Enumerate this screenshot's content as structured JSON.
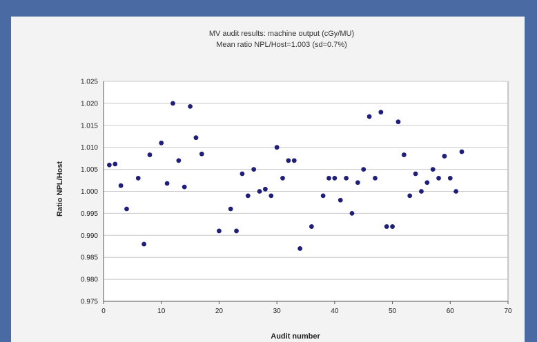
{
  "colors": {
    "frame": "#4a6aa3",
    "panel": "#f3f3f3",
    "plot_area": "#ffffff",
    "grid": "#c8c8c8",
    "marker": "#1f1f7a"
  },
  "chart_data": {
    "type": "scatter",
    "title": "MV audit results: machine output (cGy/MU)",
    "subtitle": "Mean ratio NPL/Host=1.003 (sd=0.7%)",
    "xlabel": "Audit number",
    "ylabel": "Ratio NPL/Host",
    "xlim": [
      0,
      70
    ],
    "ylim": [
      0.975,
      1.025
    ],
    "grid": "horizontal",
    "x_ticks": [
      "0",
      "10",
      "20",
      "30",
      "40",
      "50",
      "60",
      "70"
    ],
    "y_ticks": [
      "1.025",
      "1.020",
      "1.015",
      "1.010",
      "1.005",
      "1.000",
      "0.995",
      "0.990",
      "0.985",
      "0.980",
      "0.975"
    ],
    "points": [
      {
        "x": 1,
        "y": 1.006
      },
      {
        "x": 2,
        "y": 1.0062
      },
      {
        "x": 3,
        "y": 1.0013
      },
      {
        "x": 4,
        "y": 0.996
      },
      {
        "x": 6,
        "y": 1.003
      },
      {
        "x": 7,
        "y": 0.988
      },
      {
        "x": 8,
        "y": 1.0083
      },
      {
        "x": 10,
        "y": 1.011
      },
      {
        "x": 11,
        "y": 1.0018
      },
      {
        "x": 12,
        "y": 1.02
      },
      {
        "x": 13,
        "y": 1.007
      },
      {
        "x": 14,
        "y": 1.001
      },
      {
        "x": 15,
        "y": 1.0193
      },
      {
        "x": 16,
        "y": 1.0122
      },
      {
        "x": 17,
        "y": 1.0085
      },
      {
        "x": 20,
        "y": 0.991
      },
      {
        "x": 22,
        "y": 0.996
      },
      {
        "x": 23,
        "y": 0.991
      },
      {
        "x": 24,
        "y": 1.004
      },
      {
        "x": 25,
        "y": 0.999
      },
      {
        "x": 26,
        "y": 1.005
      },
      {
        "x": 27,
        "y": 1.0
      },
      {
        "x": 28,
        "y": 1.0005
      },
      {
        "x": 29,
        "y": 0.999
      },
      {
        "x": 30,
        "y": 1.01
      },
      {
        "x": 31,
        "y": 1.003
      },
      {
        "x": 32,
        "y": 1.007
      },
      {
        "x": 33,
        "y": 1.007
      },
      {
        "x": 34,
        "y": 0.987
      },
      {
        "x": 36,
        "y": 0.992
      },
      {
        "x": 38,
        "y": 0.999
      },
      {
        "x": 39,
        "y": 1.003
      },
      {
        "x": 40,
        "y": 1.003
      },
      {
        "x": 41,
        "y": 0.998
      },
      {
        "x": 42,
        "y": 1.003
      },
      {
        "x": 43,
        "y": 0.995
      },
      {
        "x": 44,
        "y": 1.002
      },
      {
        "x": 45,
        "y": 1.005
      },
      {
        "x": 46,
        "y": 1.017
      },
      {
        "x": 47,
        "y": 1.003
      },
      {
        "x": 48,
        "y": 1.018
      },
      {
        "x": 49,
        "y": 0.992
      },
      {
        "x": 50,
        "y": 0.992
      },
      {
        "x": 51,
        "y": 1.0158
      },
      {
        "x": 52,
        "y": 1.0083
      },
      {
        "x": 53,
        "y": 0.999
      },
      {
        "x": 54,
        "y": 1.004
      },
      {
        "x": 55,
        "y": 1.0
      },
      {
        "x": 56,
        "y": 1.002
      },
      {
        "x": 57,
        "y": 1.005
      },
      {
        "x": 58,
        "y": 1.003
      },
      {
        "x": 59,
        "y": 1.008
      },
      {
        "x": 60,
        "y": 1.003
      },
      {
        "x": 61,
        "y": 1.0
      },
      {
        "x": 62,
        "y": 1.009
      }
    ]
  }
}
